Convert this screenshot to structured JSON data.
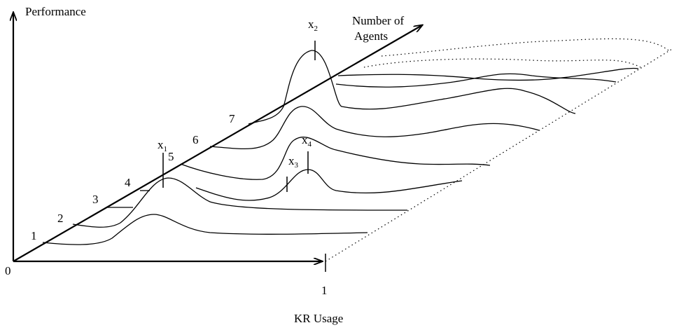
{
  "axes": {
    "performance": "Performance",
    "kr_usage": "KR  Usage",
    "agents_line1": "Number of",
    "agents_line2": "Agents",
    "origin": "0",
    "kr_end": "1"
  },
  "agent_ticks": [
    "1",
    "2",
    "3",
    "4",
    "5",
    "6",
    "7"
  ],
  "markers": {
    "x1": {
      "base": "x",
      "sub": "1"
    },
    "x2": {
      "base": "x",
      "sub": "2"
    },
    "x3": {
      "base": "x",
      "sub": "3"
    },
    "x4": {
      "base": "x",
      "sub": "4"
    }
  }
}
